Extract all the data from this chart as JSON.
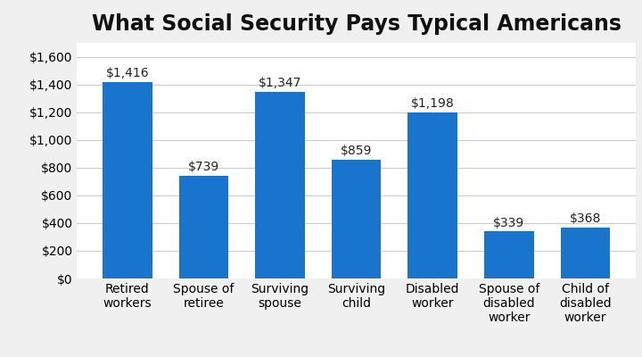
{
  "title": "What Social Security Pays Typical Americans",
  "categories": [
    "Retired\nworkers",
    "Spouse of\nretiree",
    "Surviving\nspouse",
    "Surviving\nchild",
    "Disabled\nworker",
    "Spouse of\ndisabled\nworker",
    "Child of\ndisabled\nworker"
  ],
  "values": [
    1416,
    739,
    1347,
    859,
    1198,
    339,
    368
  ],
  "labels": [
    "$1,416",
    "$739",
    "$1,347",
    "$859",
    "$1,198",
    "$339",
    "$368"
  ],
  "bar_color": "#1874CD",
  "background_color": "#f0f0f0",
  "plot_bg_color": "#ffffff",
  "title_fontsize": 17,
  "label_fontsize": 10,
  "tick_fontsize": 10,
  "ylim": [
    0,
    1700
  ],
  "yticks": [
    0,
    200,
    400,
    600,
    800,
    1000,
    1200,
    1400,
    1600
  ]
}
